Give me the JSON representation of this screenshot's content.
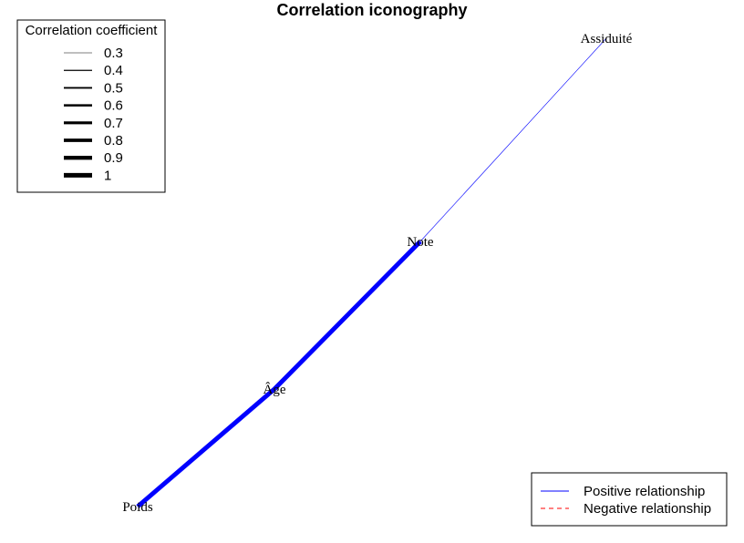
{
  "title": "Correlation iconography",
  "width_legend": {
    "title": "Correlation coefficient",
    "entries": [
      "0.3",
      "0.4",
      "0.5",
      "0.6",
      "0.7",
      "0.8",
      "0.9",
      "1"
    ]
  },
  "sign_legend": {
    "entries": [
      {
        "label": "Positive relationship",
        "color": "#0000ff",
        "style": "solid"
      },
      {
        "label": "Negative relationship",
        "color": "#ff0000",
        "style": "dashed"
      }
    ]
  },
  "nodes": [
    {
      "id": "poids",
      "label": "Poids"
    },
    {
      "id": "age",
      "label": "Âge"
    },
    {
      "id": "note",
      "label": "Note"
    },
    {
      "id": "assiduite",
      "label": "Assiduité"
    }
  ],
  "edges": [
    {
      "from": "poids",
      "to": "age",
      "coefficient": 1,
      "sign": "positive"
    },
    {
      "from": "age",
      "to": "note",
      "coefficient": 1,
      "sign": "positive"
    },
    {
      "from": "note",
      "to": "assiduite",
      "coefficient": 0.3,
      "sign": "positive"
    }
  ],
  "colors": {
    "positive": "#0000ff",
    "negative": "#ff0000"
  }
}
